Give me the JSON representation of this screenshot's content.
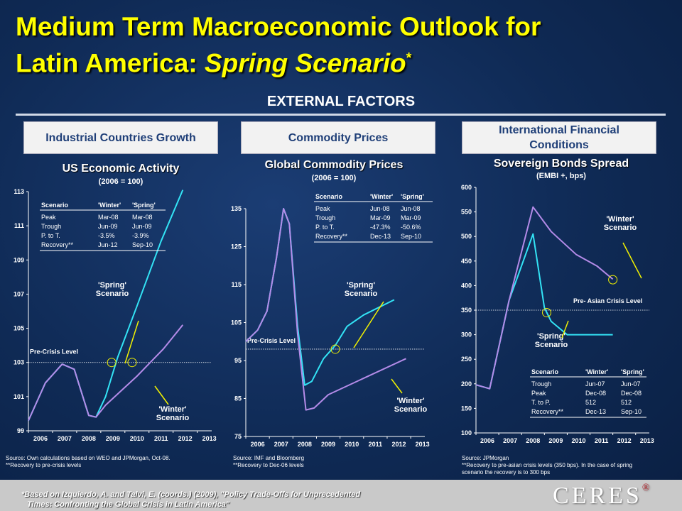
{
  "header": {
    "title_line1": "Medium Term Macroeconomic Outlook for",
    "title_line2_prefix": "Latin America: ",
    "title_line2_italic": "Spring Scenario",
    "title_star": "*",
    "section": "EXTERNAL FACTORS"
  },
  "factors": {
    "industrial": "Industrial Countries Growth",
    "commodity": "Commodity Prices",
    "financial_l1": "International Financial",
    "financial_l2": "Conditions"
  },
  "colors": {
    "title": "#ffff00",
    "spring": "#33e3f5",
    "winter": "#b48be8",
    "background": "#123066"
  },
  "chart_data": [
    {
      "type": "line",
      "title": "US Economic Activity",
      "subtitle": "(2006 = 100)",
      "x_ticks": [
        "2006",
        "2007",
        "2008",
        "2009",
        "2010",
        "2011",
        "2012",
        "2013"
      ],
      "xlim": [
        2006,
        2013.6
      ],
      "y_ticks": [
        "99",
        "101",
        "103",
        "105",
        "107",
        "109",
        "111",
        "113"
      ],
      "ylim": [
        99,
        113
      ],
      "series": [
        {
          "name": "'Spring' Scenario",
          "color": "#33e3f5",
          "points": [
            [
              2006,
              99.6
            ],
            [
              2006.7,
              101.8
            ],
            [
              2007.4,
              102.9
            ],
            [
              2007.9,
              102.6
            ],
            [
              2008.5,
              99.9
            ],
            [
              2008.8,
              99.8
            ],
            [
              2009.2,
              101
            ],
            [
              2009.7,
              103.3
            ],
            [
              2010.5,
              106.3
            ],
            [
              2011.5,
              110.1
            ],
            [
              2012.4,
              113.1
            ]
          ]
        },
        {
          "name": "'Winter' Scenario",
          "color": "#b48be8",
          "points": [
            [
              2006,
              99.6
            ],
            [
              2006.7,
              101.8
            ],
            [
              2007.4,
              102.9
            ],
            [
              2007.9,
              102.6
            ],
            [
              2008.5,
              99.9
            ],
            [
              2008.8,
              99.8
            ],
            [
              2009.2,
              100.5
            ],
            [
              2010.5,
              102.2
            ],
            [
              2011.6,
              103.8
            ],
            [
              2012.4,
              105.2
            ]
          ]
        }
      ],
      "reference_line": {
        "value": 103,
        "label": "Pre-Crisis Level"
      },
      "markers": [
        [
          2009.45,
          103
        ],
        [
          2010.3,
          103
        ]
      ],
      "annotations": {
        "spring": [
          "'Spring'",
          "Scenario"
        ],
        "winter": [
          "'Winter'",
          "Scenario"
        ]
      },
      "table": {
        "headers": [
          "Scenario",
          "'Winter'",
          "'Spring'"
        ],
        "rows": [
          [
            "Peak",
            "Mar-08",
            "Mar-08"
          ],
          [
            "Trough",
            "Jun-09",
            "Jun-09"
          ],
          [
            "P. to T.",
            "-3.5%",
            "-3.9%"
          ],
          [
            "Recovery**",
            "Jun-12",
            "Sep-10"
          ]
        ]
      },
      "source_lines": [
        "Source: Own calculations based on WEO and JPMorgan, Oct-08.",
        "**Recovery to pre-crisis levels"
      ]
    },
    {
      "type": "line",
      "title": "Global Commodity Prices",
      "subtitle": "(2006 = 100)",
      "x_ticks": [
        "2006",
        "2007",
        "2008",
        "2009",
        "2010",
        "2011",
        "2012",
        "2013"
      ],
      "xlim": [
        2006,
        2013.6
      ],
      "y_ticks": [
        "75",
        "85",
        "95",
        "105",
        "115",
        "125",
        "135"
      ],
      "ylim": [
        75,
        135
      ],
      "series": [
        {
          "name": "'Spring' Scenario",
          "color": "#33e3f5",
          "points": [
            [
              2006,
              100
            ],
            [
              2006.5,
              103
            ],
            [
              2006.9,
              108
            ],
            [
              2007.3,
              122
            ],
            [
              2007.6,
              135
            ],
            [
              2007.85,
              131
            ],
            [
              2008.2,
              104
            ],
            [
              2008.5,
              88.5
            ],
            [
              2008.8,
              89.5
            ],
            [
              2009.3,
              95.5
            ],
            [
              2009.8,
              99
            ],
            [
              2010.3,
              104
            ],
            [
              2011,
              107
            ],
            [
              2012.3,
              111
            ]
          ]
        },
        {
          "name": "'Winter' Scenario",
          "color": "#b48be8",
          "points": [
            [
              2006,
              100
            ],
            [
              2006.5,
              103
            ],
            [
              2006.9,
              108
            ],
            [
              2007.3,
              122
            ],
            [
              2007.6,
              135
            ],
            [
              2007.85,
              131
            ],
            [
              2008.2,
              102
            ],
            [
              2008.55,
              82
            ],
            [
              2008.9,
              82.5
            ],
            [
              2009.5,
              86
            ],
            [
              2012.8,
              95.5
            ]
          ]
        }
      ],
      "reference_line": {
        "value": 98,
        "label": "Pre-Crisis Level"
      },
      "markers": [
        [
          2009.8,
          98
        ]
      ],
      "annotations": {
        "spring": [
          "'Spring'",
          "Scenario"
        ],
        "winter": [
          "'Winter'",
          "Scenario"
        ]
      },
      "table": {
        "headers": [
          "Scenario",
          "'Winter'",
          "'Spring'"
        ],
        "rows": [
          [
            "Peak",
            "Jun-08",
            "Jun-08"
          ],
          [
            "Trough",
            "Mar-09",
            "Mar-09"
          ],
          [
            "P. to T.",
            "-47.3%",
            "-50.6%"
          ],
          [
            "Recovery**",
            "Dec-13",
            "Sep-10"
          ]
        ]
      },
      "source_lines": [
        "Source: IMF and Bloomberg",
        "**Recovery to Dec-06 levels"
      ]
    },
    {
      "type": "line",
      "title": "Sovereign Bonds Spread",
      "subtitle": "(EMBI +, bps)",
      "x_ticks": [
        "2006",
        "2007",
        "2008",
        "2009",
        "2010",
        "2011",
        "2012",
        "2013"
      ],
      "xlim": [
        2006,
        2013.6
      ],
      "y_ticks": [
        "100",
        "150",
        "200",
        "250",
        "300",
        "350",
        "400",
        "450",
        "500",
        "550",
        "600"
      ],
      "ylim": [
        100,
        600
      ],
      "series": [
        {
          "name": "'Spring' Scenario",
          "color": "#33e3f5",
          "points": [
            [
              2006,
              198
            ],
            [
              2006.6,
              190
            ],
            [
              2007.45,
              370
            ],
            [
              2008.5,
              505
            ],
            [
              2009,
              355
            ],
            [
              2009.3,
              327
            ],
            [
              2010,
              300
            ],
            [
              2012,
              300
            ]
          ]
        },
        {
          "name": "'Winter' Scenario",
          "color": "#b48be8",
          "points": [
            [
              2006,
              198
            ],
            [
              2006.6,
              190
            ],
            [
              2007.45,
              370
            ],
            [
              2008.5,
              560
            ],
            [
              2009.3,
              510
            ],
            [
              2010.4,
              463
            ],
            [
              2011.3,
              440
            ],
            [
              2012,
              413
            ]
          ]
        }
      ],
      "reference_line": {
        "value": 350,
        "label": "Pre- Asian Crisis Level"
      },
      "markers": [
        [
          2009.1,
          345
        ],
        [
          2012,
          412
        ]
      ],
      "annotations": {
        "spring": [
          "'Spring'",
          "Scenario"
        ],
        "winter": [
          "'Winter'",
          "Scenario"
        ]
      },
      "table": {
        "headers": [
          "Scenario",
          "'Winter'",
          "'Spring'"
        ],
        "rows": [
          [
            "Trough",
            "Jun-07",
            "Jun-07"
          ],
          [
            "Peak",
            "Dec-08",
            "Dec-08"
          ],
          [
            "T. to P.",
            "512",
            "512"
          ],
          [
            "Recovery**",
            "Dec-13",
            "Sep-10"
          ]
        ]
      },
      "source_lines": [
        "Source: JPMorgan",
        "**Recovery to pre-asian crisis levels (350 bps). In the case of spring",
        "scenario the recovery is to 300 bps"
      ]
    }
  ],
  "footer": {
    "note_line1": "*Based on Izquierdo, A. and Talvi, E. (coords.) (2009), \"Policy Trade-Offs for Unprecedented",
    "note_line2": "Times: Confronting the Global Crisis in Latin America\"",
    "logo": "CERES",
    "logo_mark": "®"
  }
}
